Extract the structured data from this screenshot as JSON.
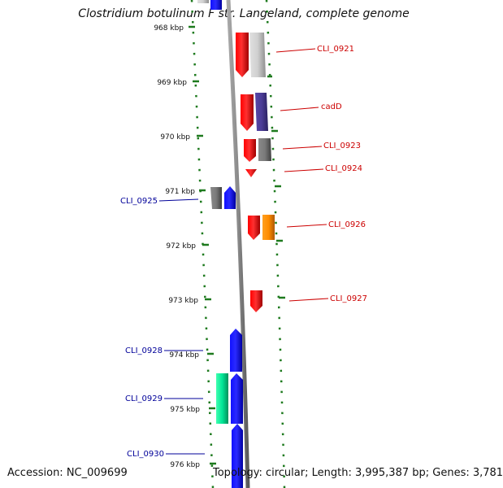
{
  "title": "Clostridium botulinum F str. Langeland, complete genome",
  "footer": {
    "accession": "Accession: NC_009699",
    "stats": "Topology: circular; Length: 3,995,387 bp; Genes: 3,781"
  },
  "ruler": {
    "ticks": [
      "968 kbp",
      "969 kbp",
      "970 kbp",
      "971 kbp",
      "972 kbp",
      "973 kbp",
      "974 kbp",
      "975 kbp",
      "976 kbp"
    ]
  },
  "colors": {
    "plus_strand_label": "#cc0000",
    "minus_strand_label": "#000099",
    "ruler_tick": "#1e7a1e",
    "backbone": "#808080"
  },
  "genes": [
    {
      "label": "CLI_0921",
      "strand": "+",
      "color": "#ff0000",
      "neighbor_color": "#c8c8c8"
    },
    {
      "label": "cadD",
      "strand": "+",
      "color": "#ff0000",
      "neighbor_color": "#4b3c96"
    },
    {
      "label": "CLI_0923",
      "strand": "+",
      "color": "#ff0000",
      "neighbor_color": "#787878"
    },
    {
      "label": "CLI_0924",
      "strand": "+",
      "color": "#ff0000"
    },
    {
      "label": "CLI_0925",
      "strand": "-",
      "color": "#0000ff",
      "neighbor_color": "#646464"
    },
    {
      "label": "CLI_0926",
      "strand": "+",
      "color": "#ff0000",
      "neighbor_color": "#ff8c00"
    },
    {
      "label": "CLI_0927",
      "strand": "+",
      "color": "#ff0000"
    },
    {
      "label": "CLI_0928",
      "strand": "-",
      "color": "#0000ff"
    },
    {
      "label": "CLI_0929",
      "strand": "-",
      "color": "#0000ff",
      "neighbor_color": "#00e696"
    },
    {
      "label": "CLI_0930",
      "strand": "-",
      "color": "#0000ff"
    }
  ]
}
